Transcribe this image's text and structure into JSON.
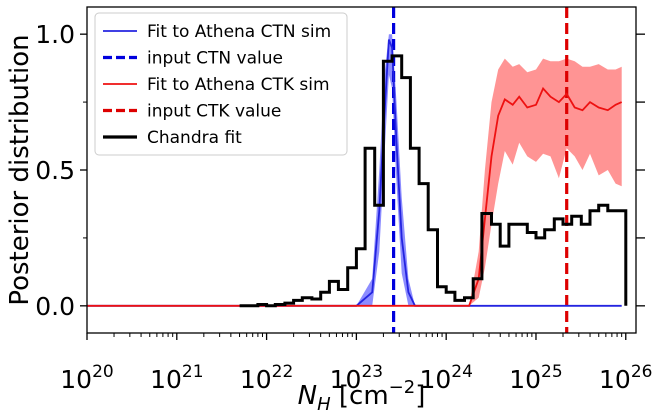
{
  "chart_data": {
    "type": "line",
    "xlabel": "N_H [cm^-2]",
    "ylabel": "Posterior distribution",
    "xscale": "log",
    "xlim": [
      1e+20,
      1.3e+26
    ],
    "ylim": [
      -0.1,
      1.1
    ],
    "x_tick_labels": [
      {
        "value": 1e+20,
        "base": "10",
        "exp": "20"
      },
      {
        "value": 1e+21,
        "base": "10",
        "exp": "21"
      },
      {
        "value": 1e+22,
        "base": "10",
        "exp": "22"
      },
      {
        "value": 1e+23,
        "base": "10",
        "exp": "23"
      },
      {
        "value": 1e+24,
        "base": "10",
        "exp": "24"
      },
      {
        "value": 1e+25,
        "base": "10",
        "exp": "25"
      },
      {
        "value": 1e+26,
        "base": "10",
        "exp": "26"
      }
    ],
    "y_tick_labels": [
      {
        "value": 0.0,
        "label": "0.0"
      },
      {
        "value": 0.5,
        "label": "0.5"
      },
      {
        "value": 1.0,
        "label": "1.0"
      }
    ],
    "grid": false,
    "legend_position": "upper-left",
    "colors": {
      "ctn_fit": "#2424e0",
      "ctn_band": "#6666ff",
      "ctn_input": "#0000dd",
      "ctk_fit": "#ee1111",
      "ctk_band": "#ff7070",
      "ctk_input": "#dd0000",
      "chandra": "#000000"
    },
    "series": [
      {
        "key": "ctn_fit",
        "name": "Fit to Athena CTN sim",
        "style": "line",
        "points": [
          [
            1e+20,
            0.0
          ],
          [
            1e+22,
            0.0
          ],
          [
            1e+23,
            0.0
          ],
          [
            1.5e+23,
            0.05
          ],
          [
            1.8e+23,
            0.35
          ],
          [
            2.05e+23,
            0.7
          ],
          [
            2.3e+23,
            0.98
          ],
          [
            2.5e+23,
            0.95
          ],
          [
            2.8e+23,
            0.6
          ],
          [
            3.2e+23,
            0.25
          ],
          [
            3.8e+23,
            0.05
          ],
          [
            4.5e+23,
            0.0
          ],
          [
            1e+24,
            0.0
          ],
          [
            9e+25,
            0.0
          ]
        ],
        "band_upper": [
          0.0,
          0.0,
          0.0,
          0.1,
          0.5,
          0.85,
          1.0,
          1.0,
          0.75,
          0.4,
          0.1,
          0.0,
          0.0,
          0.0
        ],
        "band_lower": [
          0.0,
          0.0,
          0.0,
          0.0,
          0.2,
          0.55,
          0.85,
          0.8,
          0.45,
          0.12,
          0.0,
          0.0,
          0.0,
          0.0
        ]
      },
      {
        "key": "ctn_input",
        "name": "input CTN value",
        "style": "vline",
        "x": 2.6e+23
      },
      {
        "key": "ctk_fit",
        "name": "Fit to Athena CTK sim",
        "style": "line",
        "points": [
          [
            1e+20,
            0.0
          ],
          [
            1e+23,
            0.0
          ],
          [
            1.8e+24,
            0.0
          ],
          [
            2.3e+24,
            0.1
          ],
          [
            2.7e+24,
            0.32
          ],
          [
            3.2e+24,
            0.55
          ],
          [
            3.8e+24,
            0.7
          ],
          [
            4.5e+24,
            0.76
          ],
          [
            5.5e+24,
            0.74
          ],
          [
            6.5e+24,
            0.77
          ],
          [
            8e+24,
            0.73
          ],
          [
            1e+25,
            0.74
          ],
          [
            1.2e+25,
            0.8
          ],
          [
            1.45e+25,
            0.77
          ],
          [
            1.8e+25,
            0.75
          ],
          [
            2.2e+25,
            0.78
          ],
          [
            2.7e+25,
            0.73
          ],
          [
            3.3e+25,
            0.72
          ],
          [
            4e+25,
            0.75
          ],
          [
            5e+25,
            0.73
          ],
          [
            6.3e+25,
            0.72
          ],
          [
            7.7e+25,
            0.74
          ],
          [
            9e+25,
            0.75
          ]
        ],
        "band_upper": [
          0.0,
          0.0,
          0.0,
          0.2,
          0.5,
          0.75,
          0.87,
          0.91,
          0.88,
          0.89,
          0.86,
          0.87,
          0.91,
          0.9,
          0.9,
          0.91,
          0.9,
          0.88,
          0.88,
          0.89,
          0.87,
          0.87,
          0.88
        ],
        "band_lower": [
          0.0,
          0.0,
          0.0,
          0.03,
          0.14,
          0.3,
          0.45,
          0.57,
          0.52,
          0.6,
          0.55,
          0.53,
          0.56,
          0.55,
          0.47,
          0.58,
          0.55,
          0.5,
          0.56,
          0.48,
          0.5,
          0.45,
          0.44
        ]
      },
      {
        "key": "ctk_input",
        "name": "input CTK value",
        "style": "vline",
        "x": 2.2e+25
      },
      {
        "key": "chandra",
        "name": "Chandra fit",
        "style": "step",
        "edges": [
          5e+21,
          8e+21,
          1e+22,
          1.25e+22,
          1.6e+22,
          2e+22,
          2.5e+22,
          3.2e+22,
          4e+22,
          5e+22,
          6.3e+22,
          8e+22,
          1e+23,
          1.25e+23,
          1.6e+23,
          2e+23,
          2.5e+23,
          3.2e+23,
          4e+23,
          5e+23,
          6.3e+23,
          8e+23,
          1e+24,
          1.25e+24,
          1.6e+24,
          2e+24,
          2.5e+24,
          3.2e+24,
          4e+24,
          5e+24,
          6.3e+24,
          8e+24,
          1e+25,
          1.25e+25,
          1.6e+25,
          2e+25,
          2.5e+25,
          3.2e+25,
          4e+25,
          5e+25,
          6.3e+25,
          8e+25,
          1e+26
        ],
        "values": [
          0.0,
          0.005,
          0.0,
          0.005,
          0.01,
          0.02,
          0.03,
          0.025,
          0.05,
          0.09,
          0.06,
          0.14,
          0.21,
          0.58,
          0.37,
          0.9,
          0.92,
          0.84,
          0.58,
          0.45,
          0.28,
          0.07,
          0.05,
          0.02,
          0.03,
          0.1,
          0.34,
          0.3,
          0.22,
          0.3,
          0.3,
          0.27,
          0.25,
          0.28,
          0.32,
          0.3,
          0.33,
          0.3,
          0.35,
          0.37,
          0.35,
          0.35
        ]
      }
    ],
    "legend": [
      {
        "key": "ctn_fit",
        "label": "Fit to Athena CTN sim",
        "style": "solid"
      },
      {
        "key": "ctn_input",
        "label": "input CTN value",
        "style": "dashed"
      },
      {
        "key": "ctk_fit",
        "label": "Fit to Athena CTK sim",
        "style": "solid"
      },
      {
        "key": "ctk_input",
        "label": "input CTK value",
        "style": "dashed"
      },
      {
        "key": "chandra",
        "label": "Chandra fit",
        "style": "thick"
      }
    ]
  }
}
